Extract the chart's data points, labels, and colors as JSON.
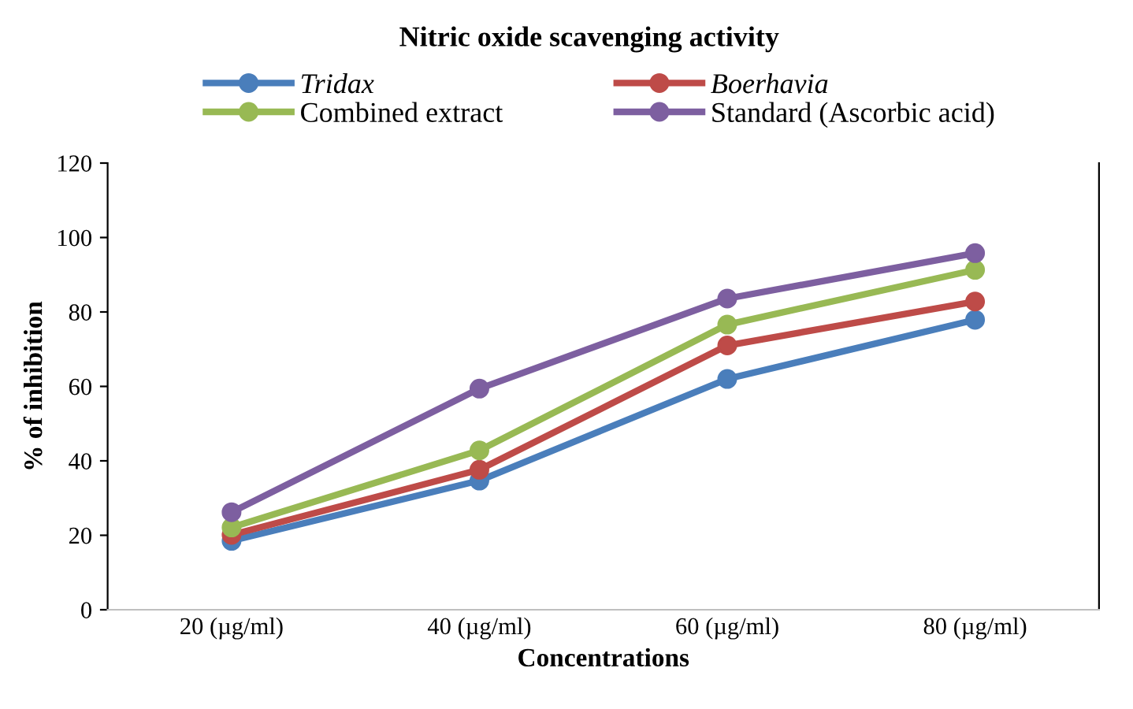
{
  "chart_data": {
    "type": "line",
    "title": "Nitric oxide scavenging activity",
    "xlabel": "Concentrations",
    "ylabel": "% of inhibition",
    "categories": [
      "20 (µg/ml)",
      "40 (µg/ml)",
      "60 (µg/ml)",
      "80 (µg/ml)"
    ],
    "series": [
      {
        "name": "Tridax",
        "color": "#4a7ebb",
        "values": [
          18.5,
          34.7,
          62,
          77.9
        ]
      },
      {
        "name": "Boerhavia",
        "color": "#be4b48",
        "values": [
          20.1,
          37.6,
          71,
          82.8
        ]
      },
      {
        "name": "Combined extract",
        "color": "#98b954",
        "values": [
          22.1,
          42.8,
          76.6,
          91.3
        ]
      },
      {
        "name": "Standard (Ascorbic acid)",
        "color": "#7d5fa0",
        "values": [
          26.2,
          59.4,
          83.6,
          95.8
        ]
      }
    ],
    "ylim": [
      0,
      120
    ],
    "yticks": [
      0,
      20,
      40,
      60,
      80,
      100,
      120
    ],
    "grid": false,
    "legend": "top",
    "marker": "circle",
    "line_style": "solid"
  }
}
